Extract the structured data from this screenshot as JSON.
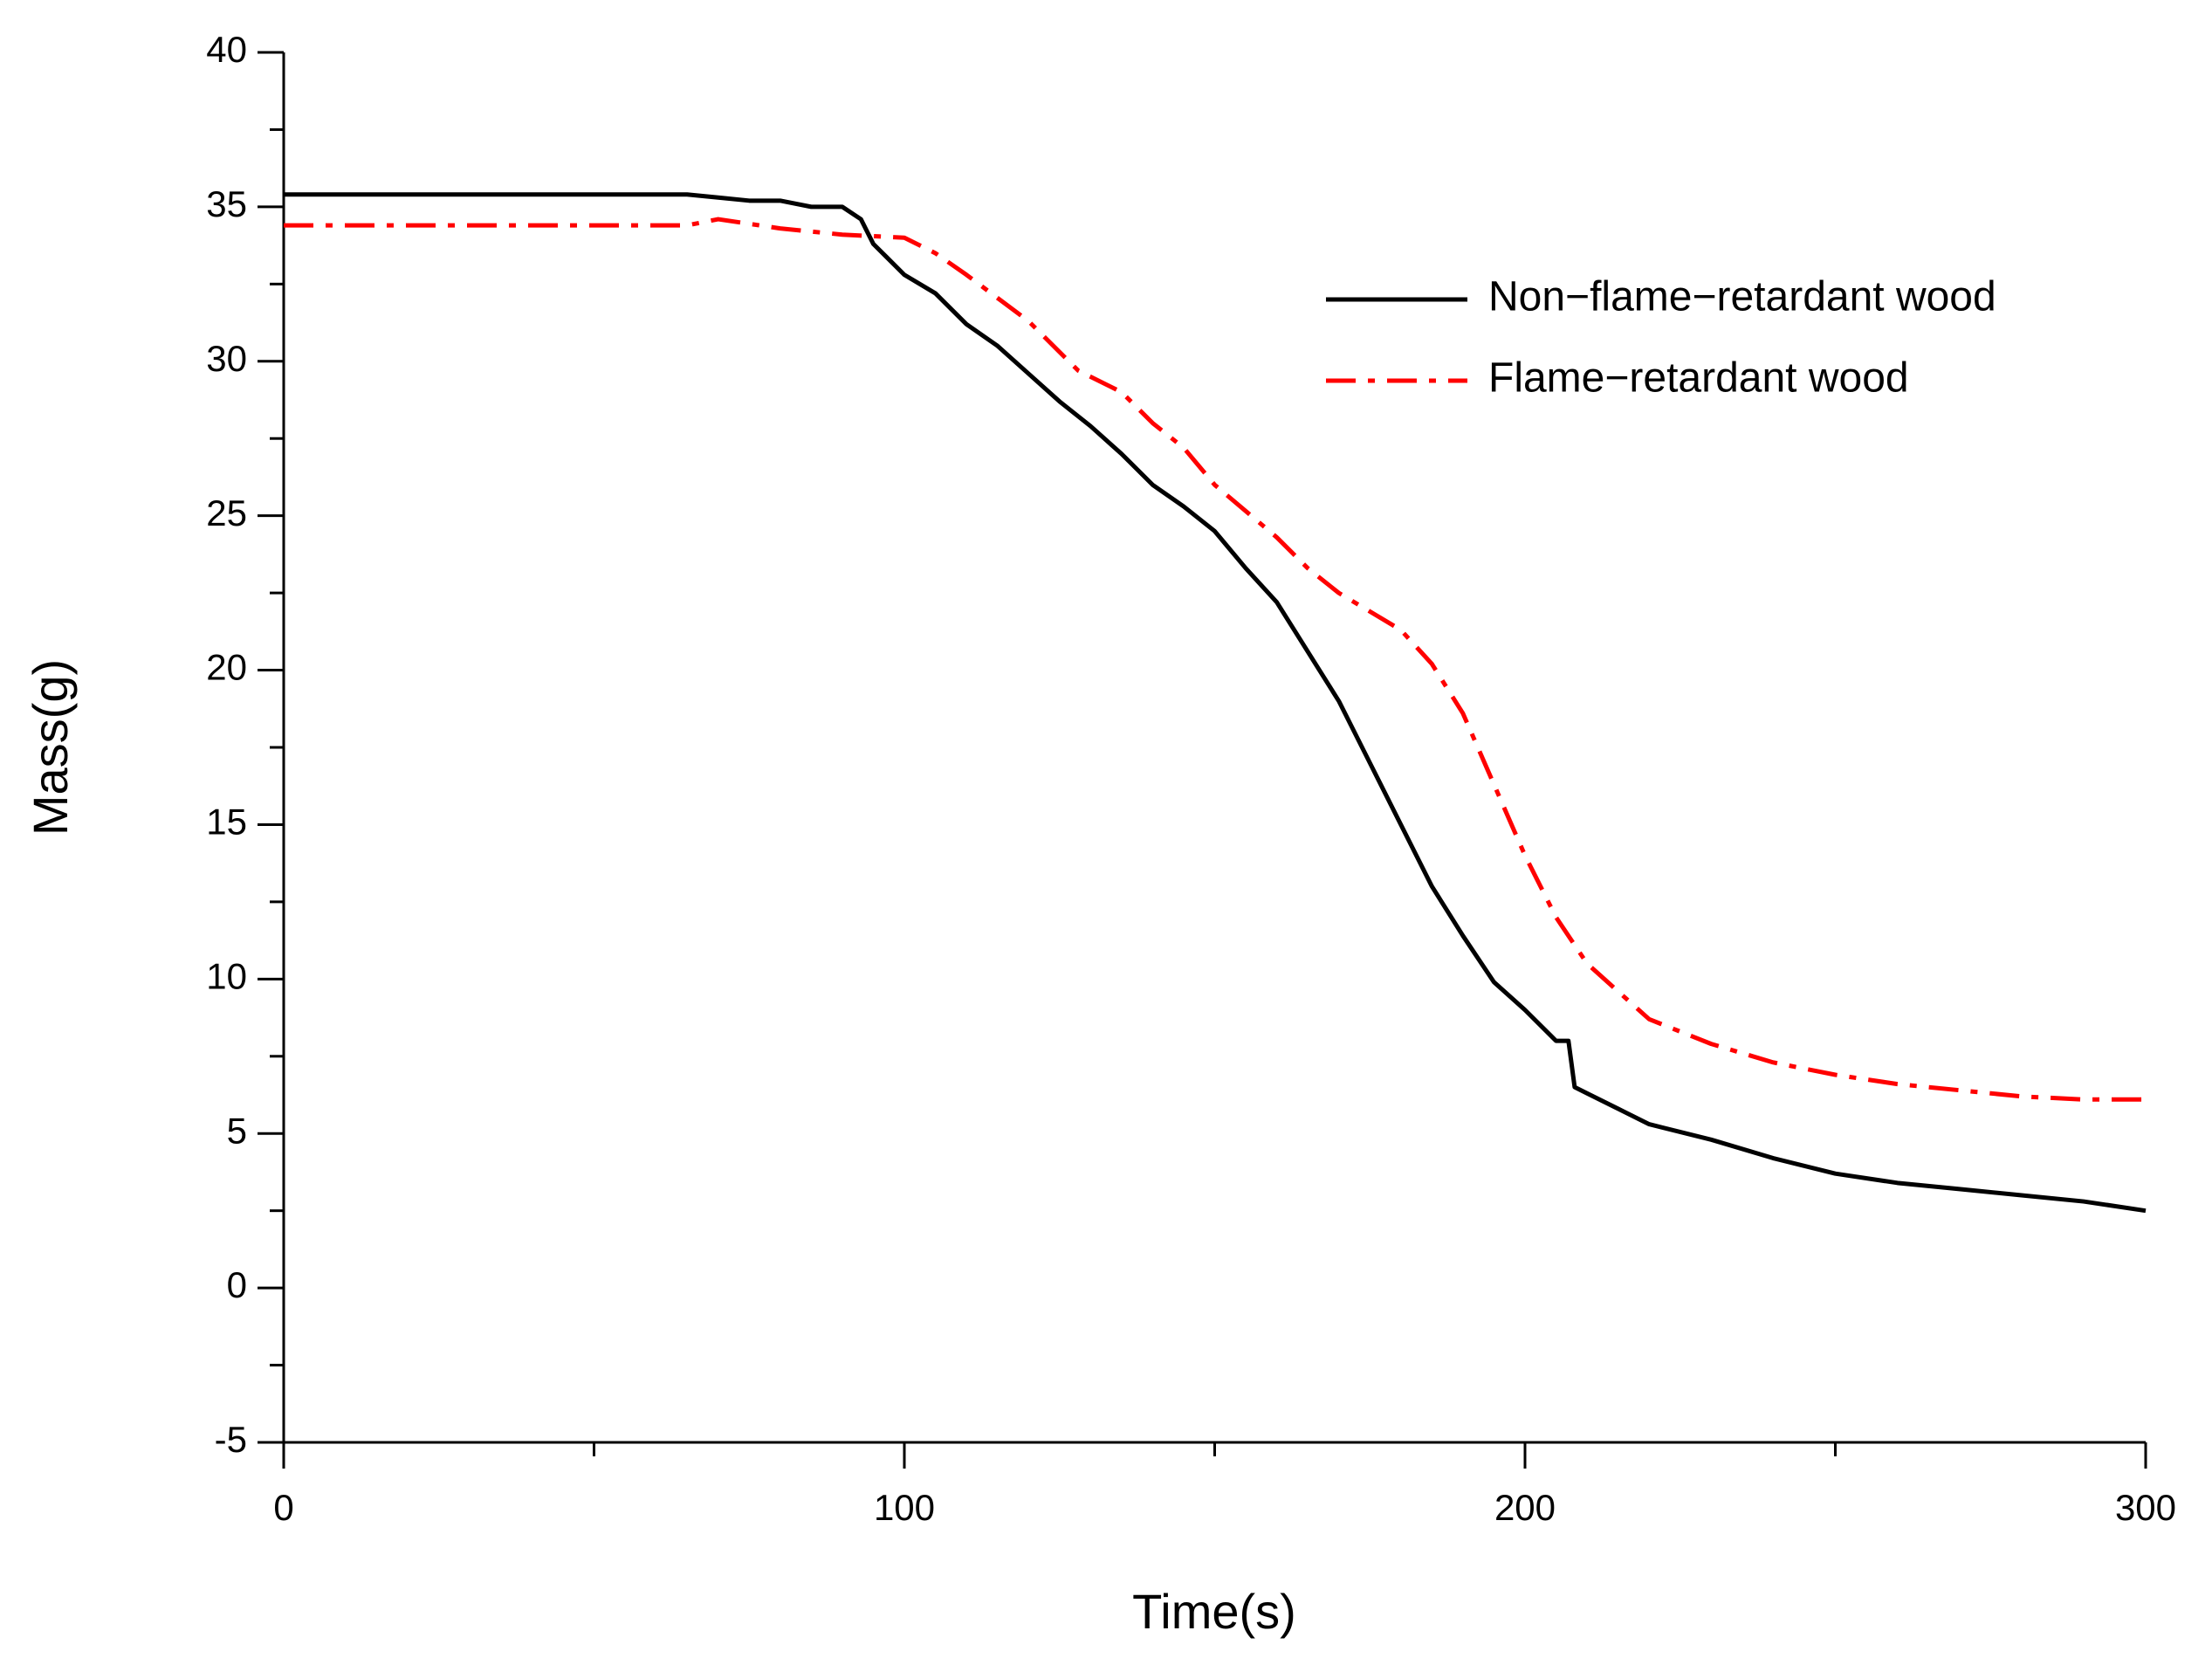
{
  "chart_data": {
    "type": "line",
    "xlabel": "Time(s)",
    "ylabel": "Mass(g)",
    "xlim": [
      0,
      300
    ],
    "xticks": [
      0,
      100,
      200,
      300
    ],
    "xminorticks": [
      50,
      150,
      250
    ],
    "ylim": [
      -5,
      40
    ],
    "yticks": [
      -5,
      0,
      5,
      10,
      15,
      20,
      25,
      30,
      35,
      40
    ],
    "yminorticks": [
      -2.5,
      2.5,
      7.5,
      12.5,
      17.5,
      22.5,
      27.5,
      32.5,
      37.5
    ],
    "legend": "upper right",
    "series": [
      {
        "name": "Non−flame−retardant wood",
        "color": "#000000",
        "dash": "solid",
        "x": [
          0,
          65,
          70,
          75,
          80,
          85,
          90,
          93,
          95,
          100,
          105,
          110,
          115,
          120,
          125,
          130,
          135,
          140,
          145,
          150,
          155,
          160,
          165,
          170,
          175,
          180,
          185,
          190,
          195,
          200,
          205,
          207,
          208,
          210,
          215,
          220,
          230,
          240,
          250,
          260,
          270,
          280,
          290,
          300
        ],
        "values": [
          35.4,
          35.4,
          35.3,
          35.2,
          35.2,
          35.0,
          35.0,
          34.6,
          33.8,
          32.8,
          32.2,
          31.2,
          30.5,
          29.6,
          28.7,
          27.9,
          27.0,
          26.0,
          25.3,
          24.5,
          23.3,
          22.2,
          20.6,
          19.0,
          17.0,
          15.0,
          13.0,
          11.4,
          9.9,
          9.0,
          8.0,
          8.0,
          6.5,
          6.3,
          5.8,
          5.3,
          4.8,
          4.2,
          3.7,
          3.4,
          3.2,
          3.0,
          2.8,
          2.5
        ]
      },
      {
        "name": "Flame−retardant wood",
        "color": "#ff0000",
        "dash": "dashdot",
        "x": [
          0,
          65,
          70,
          80,
          90,
          100,
          105,
          110,
          120,
          128,
          135,
          140,
          145,
          150,
          160,
          165,
          170,
          180,
          185,
          190,
          195,
          200,
          205,
          210,
          220,
          230,
          240,
          250,
          260,
          270,
          280,
          290,
          300
        ],
        "values": [
          34.4,
          34.4,
          34.6,
          34.3,
          34.1,
          34.0,
          33.5,
          32.8,
          31.3,
          29.7,
          29.0,
          28.0,
          27.2,
          26.0,
          24.3,
          23.3,
          22.5,
          21.3,
          20.2,
          18.6,
          16.3,
          14.0,
          12.0,
          10.5,
          8.7,
          7.9,
          7.3,
          6.9,
          6.6,
          6.4,
          6.2,
          6.1,
          6.1
        ]
      }
    ]
  }
}
